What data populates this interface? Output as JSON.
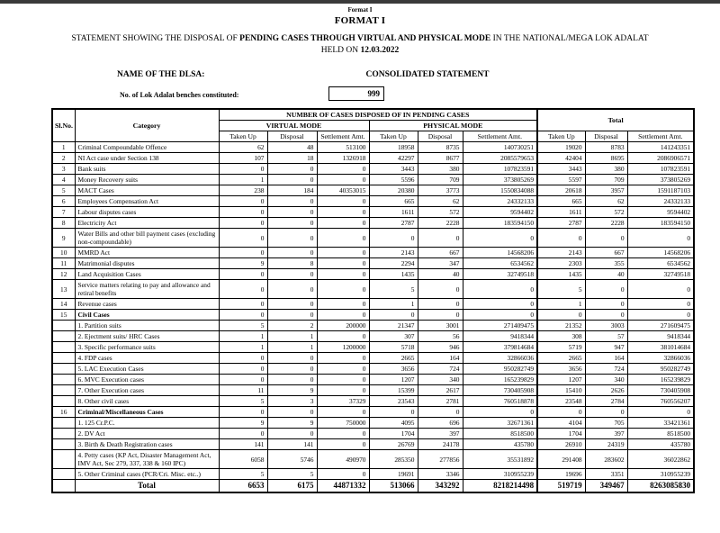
{
  "page": {
    "top_label": "Format I",
    "title": "FORMAT I",
    "statement_prefix": "STATEMENT SHOWING THE DISPOSAL OF ",
    "statement_bold": "PENDING CASES THROUGH VIRTUAL AND PHYSICAL MODE",
    "statement_suffix": " IN THE NATIONAL/MEGA LOK ADALAT",
    "held_on_prefix": "HELD ON ",
    "held_on_date": "12.03.2022",
    "dlsa_label": "NAME OF THE DLSA:",
    "dlsa_value": "CONSOLIDATED STATEMENT",
    "benches_label": "No. of Lok Adalat benches constituted:",
    "benches_value": "999"
  },
  "table": {
    "headers": {
      "sl_no": "Sl.No.",
      "category": "Category",
      "group": "NUMBER OF CASES DISPOSED OF IN PENDING CASES",
      "virtual": "VIRTUAL MODE",
      "physical": "PHYSICAL MODE",
      "total": "Total",
      "taken_up": "Taken Up",
      "disposal": "Disposal",
      "settlement_amt": "Settlement Amt."
    },
    "rows": [
      {
        "sl": "1",
        "category": "Criminal Compoundable Offence",
        "bold": false,
        "values": [
          "62",
          "48",
          "513100",
          "18958",
          "8735",
          "140730251",
          "19020",
          "8783",
          "141243351"
        ]
      },
      {
        "sl": "2",
        "category": "NI Act case under Section 138",
        "bold": false,
        "values": [
          "107",
          "18",
          "1326918",
          "42297",
          "8677",
          "2085579653",
          "42404",
          "8695",
          "2086906571"
        ]
      },
      {
        "sl": "3",
        "category": "Bank suits",
        "bold": false,
        "values": [
          "0",
          "0",
          "0",
          "3443",
          "380",
          "107823591",
          "3443",
          "380",
          "107823591"
        ]
      },
      {
        "sl": "4",
        "category": "Money Recovery suits",
        "bold": false,
        "values": [
          "1",
          "0",
          "0",
          "5596",
          "709",
          "373805269",
          "5597",
          "709",
          "373805269"
        ]
      },
      {
        "sl": "5",
        "category": "MACT Cases",
        "bold": false,
        "values": [
          "238",
          "184",
          "40353015",
          "20380",
          "3773",
          "1550834088",
          "20618",
          "3957",
          "1591187103"
        ]
      },
      {
        "sl": "6",
        "category": "Employees Compensation Act",
        "bold": false,
        "values": [
          "0",
          "0",
          "0",
          "665",
          "62",
          "24332133",
          "665",
          "62",
          "24332133"
        ]
      },
      {
        "sl": "7",
        "category": "Labour disputes cases",
        "bold": false,
        "values": [
          "0",
          "0",
          "0",
          "1611",
          "572",
          "9594402",
          "1611",
          "572",
          "9594402"
        ]
      },
      {
        "sl": "8",
        "category": "Electricity Act",
        "bold": false,
        "values": [
          "0",
          "0",
          "0",
          "2787",
          "2228",
          "183594150",
          "2787",
          "2228",
          "183594150"
        ]
      },
      {
        "sl": "9",
        "category": "Water Bills and other bill payment cases (excluding non-compoundable)",
        "bold": false,
        "values": [
          "0",
          "0",
          "0",
          "0",
          "0",
          "0",
          "0",
          "0",
          "0"
        ]
      },
      {
        "sl": "10",
        "category": "MMRD Act",
        "bold": false,
        "values": [
          "0",
          "0",
          "0",
          "2143",
          "667",
          "14568206",
          "2143",
          "667",
          "14568206"
        ]
      },
      {
        "sl": "11",
        "category": "Matrimonial disputes",
        "bold": false,
        "values": [
          "9",
          "8",
          "0",
          "2294",
          "347",
          "6534562",
          "2303",
          "355",
          "6534562"
        ]
      },
      {
        "sl": "12",
        "category": "Land Acquisition Cases",
        "bold": false,
        "values": [
          "0",
          "0",
          "0",
          "1435",
          "40",
          "32749518",
          "1435",
          "40",
          "32749518"
        ]
      },
      {
        "sl": "13",
        "category": "Service matters relating to pay and allowance and retiral benefits",
        "bold": false,
        "values": [
          "0",
          "0",
          "0",
          "5",
          "0",
          "0",
          "5",
          "0",
          "0"
        ]
      },
      {
        "sl": "14",
        "category": "Revenue cases",
        "bold": false,
        "values": [
          "0",
          "0",
          "0",
          "1",
          "0",
          "0",
          "1",
          "0",
          "0"
        ]
      },
      {
        "sl": "15",
        "category": "Civil Cases",
        "bold": true,
        "values": [
          "0",
          "0",
          "0",
          "0",
          "0",
          "0",
          "0",
          "0",
          "0"
        ]
      },
      {
        "sl": "",
        "category": "1. Partition suits",
        "bold": false,
        "values": [
          "5",
          "2",
          "200000",
          "21347",
          "3001",
          "271409475",
          "21352",
          "3003",
          "271609475"
        ]
      },
      {
        "sl": "",
        "category": "2. Ejectment suits/ HRC Cases",
        "bold": false,
        "values": [
          "1",
          "1",
          "0",
          "307",
          "56",
          "9418344",
          "308",
          "57",
          "9418344"
        ]
      },
      {
        "sl": "",
        "category": "3. Specific performance suits",
        "bold": false,
        "values": [
          "1",
          "1",
          "1200000",
          "5718",
          "946",
          "379814684",
          "5719",
          "947",
          "381014684"
        ]
      },
      {
        "sl": "",
        "category": "4. FDP cases",
        "bold": false,
        "values": [
          "0",
          "0",
          "0",
          "2665",
          "164",
          "32866036",
          "2665",
          "164",
          "32866036"
        ]
      },
      {
        "sl": "",
        "category": "5. LAC Execution Cases",
        "bold": false,
        "values": [
          "0",
          "0",
          "0",
          "3656",
          "724",
          "950282749",
          "3656",
          "724",
          "950282749"
        ]
      },
      {
        "sl": "",
        "category": "6. MVC Execution cases",
        "bold": false,
        "values": [
          "0",
          "0",
          "0",
          "1207",
          "340",
          "165239829",
          "1207",
          "340",
          "165239829"
        ]
      },
      {
        "sl": "",
        "category": "7. Other Execution cases",
        "bold": false,
        "values": [
          "11",
          "9",
          "0",
          "15399",
          "2617",
          "730405908",
          "15410",
          "2626",
          "730405908"
        ]
      },
      {
        "sl": "",
        "category": "8. Other civil cases",
        "bold": false,
        "values": [
          "5",
          "3",
          "37329",
          "23543",
          "2781",
          "760518878",
          "23548",
          "2784",
          "760556207"
        ]
      },
      {
        "sl": "16",
        "category": "Criminal/Miscellaneous Cases",
        "bold": true,
        "values": [
          "0",
          "0",
          "0",
          "0",
          "0",
          "0",
          "0",
          "0",
          "0"
        ]
      },
      {
        "sl": "",
        "category": "1. 125 Cr.P.C.",
        "bold": false,
        "values": [
          "9",
          "9",
          "750000",
          "4095",
          "696",
          "32671361",
          "4104",
          "705",
          "33421361"
        ]
      },
      {
        "sl": "",
        "category": "2. DV Act",
        "bold": false,
        "values": [
          "0",
          "0",
          "0",
          "1704",
          "397",
          "8518500",
          "1704",
          "397",
          "8518500"
        ]
      },
      {
        "sl": "",
        "category": "3. Birth & Death Registration cases",
        "bold": false,
        "values": [
          "141",
          "141",
          "0",
          "26769",
          "24178",
          "435780",
          "26910",
          "24319",
          "435780"
        ]
      },
      {
        "sl": "",
        "category": "4. Petty cases (KP Act, Disaster Management Act, IMV Act, Sec 279, 337, 338 & 160 IPC)",
        "bold": false,
        "values": [
          "6058",
          "5746",
          "490970",
          "285350",
          "277856",
          "35531892",
          "291408",
          "283602",
          "36022862"
        ]
      },
      {
        "sl": "",
        "category": "5. Other Criminal cases (PCR/Cri. Misc. etc..)",
        "bold": false,
        "values": [
          "5",
          "5",
          "0",
          "19691",
          "3346",
          "310955239",
          "19696",
          "3351",
          "310955239"
        ]
      }
    ],
    "total_row": {
      "label": "Total",
      "values": [
        "6653",
        "6175",
        "44871332",
        "513066",
        "343292",
        "8218214498",
        "519719",
        "349467",
        "8263085830"
      ]
    }
  }
}
